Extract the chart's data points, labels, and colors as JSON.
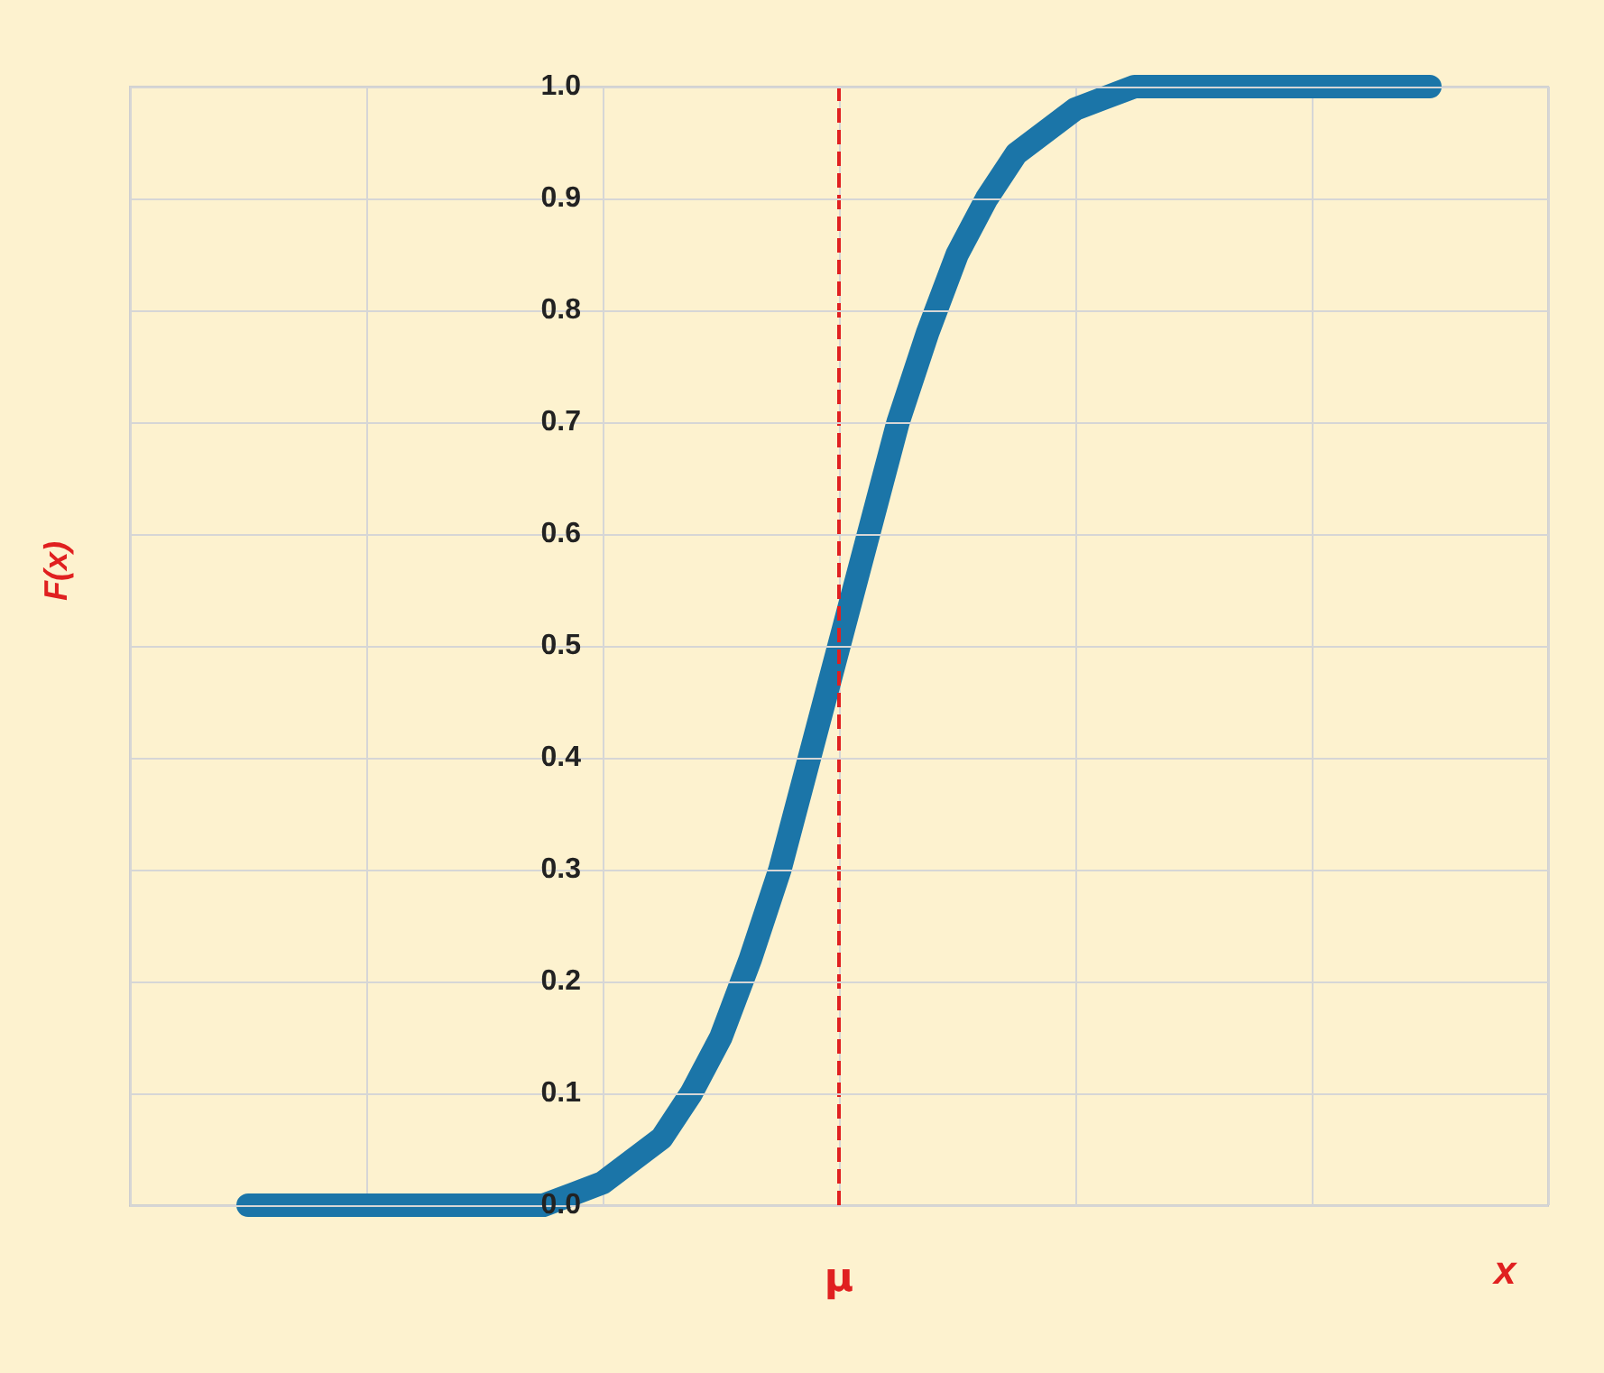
{
  "chart_data": {
    "type": "line",
    "xlabel": "x",
    "ylabel": "F(x)",
    "categories": [
      null,
      null,
      null,
      null,
      null,
      null,
      null,
      null,
      null,
      null,
      null,
      null,
      null,
      null,
      null,
      null,
      null,
      null,
      null,
      null,
      null,
      null,
      null,
      null,
      null,
      null,
      null,
      null,
      null,
      null,
      null,
      null,
      null,
      null,
      null,
      null,
      null,
      null,
      null,
      null,
      null,
      null,
      null,
      null,
      null,
      null,
      null,
      null,
      null
    ],
    "series": [
      {
        "color": "#1b75a8",
        "values": [
          null,
          null,
          null,
          null,
          0,
          0,
          0,
          0,
          0,
          0,
          0,
          0,
          0,
          0,
          0,
          0.01,
          0.02,
          0.04,
          0.06,
          0.1,
          0.15,
          0.22,
          0.3,
          0.4,
          0.5,
          0.6,
          0.7,
          0.78,
          0.85,
          0.9,
          0.94,
          0.96,
          0.98,
          0.99,
          1,
          1,
          1,
          1,
          1,
          1,
          1,
          1,
          1,
          1,
          1,
          null,
          null,
          null,
          null
        ]
      }
    ],
    "ylim": [
      0,
      1
    ],
    "yticks": [
      {
        "value": 0,
        "label": "0.0"
      },
      {
        "value": 0.1,
        "label": "0.1"
      },
      {
        "value": 0.2,
        "label": "0.2"
      },
      {
        "value": 0.3,
        "label": "0.3"
      },
      {
        "value": 0.4,
        "label": "0.4"
      },
      {
        "value": 0.5,
        "label": "0.5"
      },
      {
        "value": 0.6,
        "label": "0.6"
      },
      {
        "value": 0.7,
        "label": "0.7"
      },
      {
        "value": 0.8,
        "label": "0.8"
      },
      {
        "value": 0.9,
        "label": "0.9"
      },
      {
        "value": 1,
        "label": "1.0"
      }
    ],
    "annotations": [
      "μ"
    ],
    "grid": true,
    "tick_labels": "y"
  }
}
